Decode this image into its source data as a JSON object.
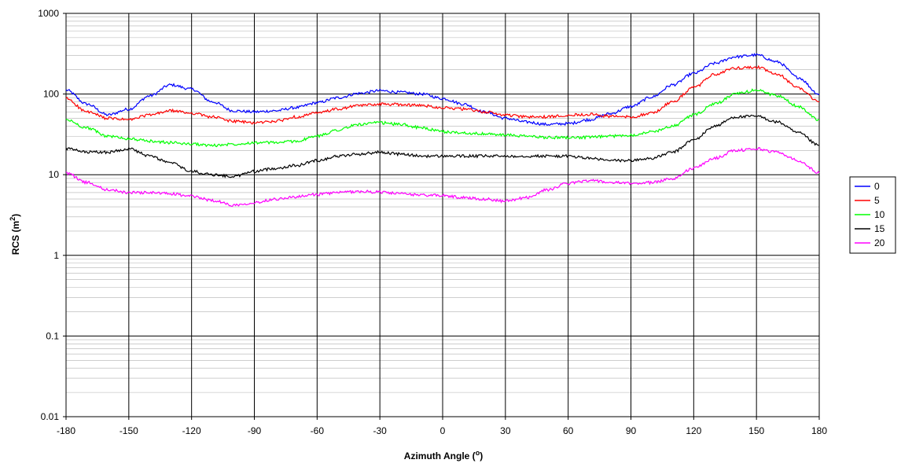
{
  "chart_data": {
    "type": "line",
    "title": "",
    "xlabel": "Azimuth Angle (",
    "xlabel_sup": "o",
    "xlabel_end": ")",
    "ylabel": "RCS (m",
    "ylabel_sup": "2",
    "ylabel_end": ")",
    "xlim": [
      -180,
      180
    ],
    "ylim": [
      0.01,
      1000
    ],
    "y_scale": "log",
    "x_ticks": [
      "-180",
      "-150",
      "-120",
      "-90",
      "-60",
      "-30",
      "0",
      "30",
      "60",
      "90",
      "120",
      "150",
      "180"
    ],
    "y_ticks": [
      "0.01",
      "0.1",
      "1",
      "10",
      "100",
      "1000"
    ],
    "grid": "on",
    "legend_position": "right",
    "series": [
      {
        "name": "0",
        "color": "#0000ff",
        "x": [
          -180,
          -170,
          -160,
          -150,
          -140,
          -130,
          -120,
          -110,
          -100,
          -90,
          -80,
          -70,
          -60,
          -50,
          -40,
          -30,
          -20,
          -10,
          0,
          10,
          20,
          30,
          40,
          50,
          60,
          70,
          80,
          90,
          100,
          110,
          120,
          130,
          140,
          150,
          160,
          170,
          180
        ],
        "y": [
          112,
          75,
          55,
          65,
          95,
          130,
          115,
          80,
          62,
          60,
          62,
          68,
          78,
          90,
          102,
          110,
          105,
          100,
          88,
          75,
          60,
          50,
          45,
          42,
          43,
          48,
          57,
          70,
          92,
          130,
          180,
          240,
          290,
          305,
          250,
          160,
          100
        ]
      },
      {
        "name": "5",
        "color": "#ff0000",
        "x": [
          -180,
          -170,
          -160,
          -150,
          -140,
          -130,
          -120,
          -110,
          -100,
          -90,
          -80,
          -70,
          -60,
          -50,
          -40,
          -30,
          -20,
          -10,
          0,
          10,
          20,
          30,
          40,
          50,
          60,
          70,
          80,
          90,
          100,
          110,
          120,
          130,
          140,
          150,
          160,
          170,
          180
        ],
        "y": [
          88,
          60,
          50,
          48,
          55,
          62,
          58,
          52,
          46,
          44,
          46,
          52,
          58,
          65,
          72,
          75,
          74,
          72,
          68,
          65,
          60,
          55,
          52,
          52,
          55,
          56,
          53,
          52,
          58,
          80,
          120,
          175,
          210,
          215,
          175,
          120,
          80
        ]
      },
      {
        "name": "10",
        "color": "#00ff00",
        "x": [
          -180,
          -170,
          -160,
          -150,
          -140,
          -130,
          -120,
          -110,
          -100,
          -90,
          -80,
          -70,
          -60,
          -50,
          -40,
          -30,
          -20,
          -10,
          0,
          10,
          20,
          30,
          40,
          50,
          60,
          70,
          80,
          90,
          100,
          110,
          120,
          130,
          140,
          150,
          160,
          170,
          180
        ],
        "y": [
          48,
          38,
          30,
          28,
          26,
          25,
          24,
          23,
          24,
          25,
          25,
          26,
          30,
          36,
          42,
          44,
          42,
          38,
          34,
          33,
          32,
          31,
          30,
          29,
          29,
          29,
          30,
          31,
          34,
          40,
          55,
          75,
          100,
          112,
          95,
          70,
          48
        ]
      },
      {
        "name": "15",
        "color": "#000000",
        "x": [
          -180,
          -170,
          -160,
          -150,
          -140,
          -130,
          -120,
          -110,
          -100,
          -90,
          -80,
          -70,
          -60,
          -50,
          -40,
          -30,
          -20,
          -10,
          0,
          10,
          20,
          30,
          40,
          50,
          60,
          70,
          80,
          90,
          100,
          110,
          120,
          130,
          140,
          150,
          160,
          170,
          180
        ],
        "y": [
          21,
          19,
          19,
          21,
          17,
          14,
          11,
          10,
          9.5,
          11,
          12,
          13,
          15,
          17,
          18,
          19,
          18,
          17,
          17,
          17,
          17,
          17,
          17,
          17,
          17,
          16,
          15,
          15,
          16,
          19,
          27,
          40,
          52,
          53,
          45,
          33,
          23
        ]
      },
      {
        "name": "20",
        "color": "#ff00ff",
        "x": [
          -180,
          -170,
          -160,
          -150,
          -140,
          -130,
          -120,
          -110,
          -100,
          -90,
          -80,
          -70,
          -60,
          -50,
          -40,
          -30,
          -20,
          -10,
          0,
          10,
          20,
          30,
          40,
          50,
          60,
          70,
          80,
          90,
          100,
          110,
          120,
          130,
          140,
          150,
          160,
          170,
          180
        ],
        "y": [
          10.5,
          8,
          6.5,
          6,
          6,
          5.8,
          5.4,
          4.8,
          4.2,
          4.5,
          5,
          5.3,
          5.7,
          6,
          6.2,
          6.1,
          5.8,
          5.6,
          5.5,
          5.2,
          5,
          4.7,
          5.2,
          6.5,
          7.8,
          8.5,
          8,
          7.8,
          8,
          9,
          12,
          16,
          20,
          21,
          19,
          15,
          10.5
        ]
      }
    ]
  }
}
